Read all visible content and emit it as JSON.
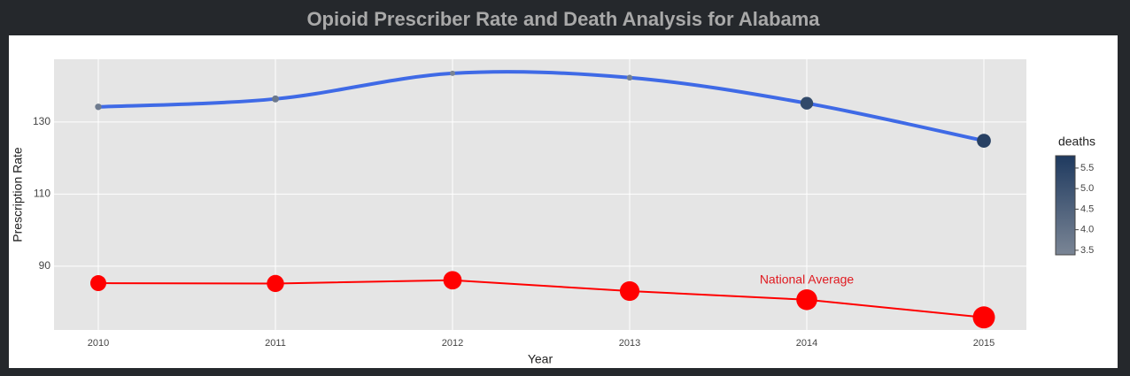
{
  "chart_data": {
    "type": "line",
    "title": "Opioid Prescriber Rate and Death Analysis for Alabama",
    "x_label": "Year",
    "y_label": "Prescription Rate",
    "x": [
      2010,
      2011,
      2012,
      2013,
      2014,
      2015
    ],
    "xlim": [
      2009.75,
      2015.24
    ],
    "xticks": [
      2010,
      2011,
      2012,
      2013,
      2014,
      2015
    ],
    "ylim": [
      72.3,
      147.4
    ],
    "yticks": [
      90,
      110,
      130
    ],
    "grid": true,
    "series": [
      {
        "name": "Alabama",
        "color": "#3f6ae6",
        "smooth": true,
        "values": [
          134.2,
          136.4,
          143.5,
          142.3,
          135.2,
          124.8
        ],
        "deaths": [
          3.7,
          3.8,
          3.4,
          3.5,
          5.3,
          5.6
        ]
      },
      {
        "name": "National Average",
        "color": "#ff0000",
        "values": [
          85.3,
          85.2,
          86.1,
          83.1,
          80.7,
          75.8
        ]
      }
    ],
    "annotation": {
      "text": "National Average",
      "x": 2014,
      "y": 85.3
    },
    "colorbar": {
      "title": "deaths",
      "cmin": 3.39,
      "cmax": 5.8,
      "colors": [
        "#7a8595",
        "#1f3a5f"
      ],
      "ticks": [
        {
          "value": 3.5,
          "label": "3.5"
        },
        {
          "value": 4,
          "label": "4.0"
        },
        {
          "value": 4.5,
          "label": "4.5"
        },
        {
          "value": 5,
          "label": "5.0"
        },
        {
          "value": 5.5,
          "label": "5.5"
        }
      ]
    }
  }
}
